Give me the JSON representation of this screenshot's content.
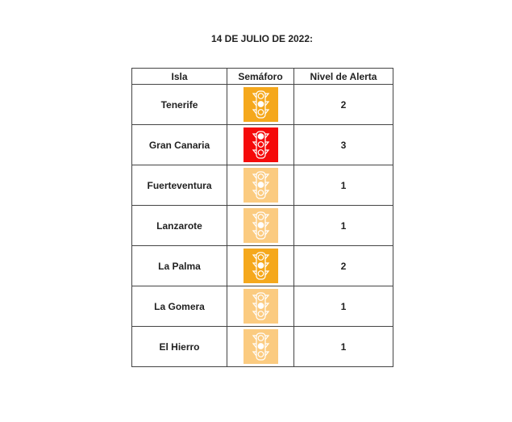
{
  "title": "14 DE JULIO DE 2022:",
  "headers": [
    "Isla",
    "Semáforo",
    "Nivel de Alerta"
  ],
  "colors": {
    "1": "#fbcb80",
    "2": "#f5a81c",
    "3": "#f50a0a"
  },
  "rows": [
    {
      "isla": "Tenerife",
      "icon": "traffic-light-icon",
      "nivel": "2"
    },
    {
      "isla": "Gran Canaria",
      "icon": "traffic-light-icon",
      "nivel": "3"
    },
    {
      "isla": "Fuerteventura",
      "icon": "traffic-light-icon",
      "nivel": "1"
    },
    {
      "isla": "Lanzarote",
      "icon": "traffic-light-icon",
      "nivel": "1"
    },
    {
      "isla": "La Palma",
      "icon": "traffic-light-icon",
      "nivel": "2"
    },
    {
      "isla": "La Gomera",
      "icon": "traffic-light-icon",
      "nivel": "1"
    },
    {
      "isla": "El Hierro",
      "icon": "traffic-light-icon",
      "nivel": "1"
    }
  ]
}
